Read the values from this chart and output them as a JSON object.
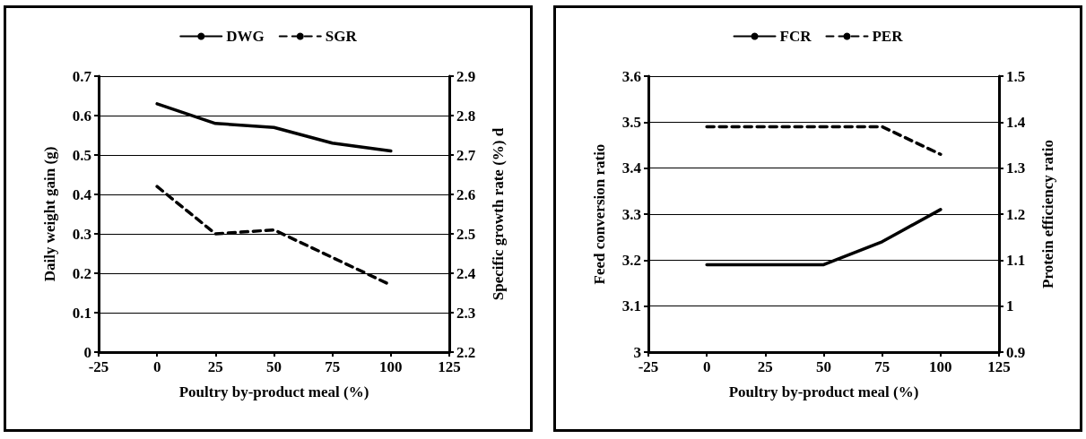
{
  "chart_data": [
    {
      "type": "line",
      "xlabel": "Poultry by-product meal (%)",
      "ylabel": "Daily weight gain (g)",
      "y2label": "Specific growth rate (%) d",
      "x": [
        0,
        25,
        50,
        75,
        100
      ],
      "xlim": [
        -25,
        125
      ],
      "xticks": [
        -25,
        0,
        25,
        50,
        75,
        100,
        125
      ],
      "ylim": [
        0,
        0.7
      ],
      "yticks": [
        0,
        0.1,
        0.2,
        0.3,
        0.4,
        0.5,
        0.6,
        0.7
      ],
      "y2lim": [
        2.2,
        2.9
      ],
      "y2ticks": [
        2.2,
        2.3,
        2.4,
        2.5,
        2.6,
        2.7,
        2.8,
        2.9
      ],
      "grid": "y",
      "legend": "top",
      "marker": "none",
      "series": [
        {
          "name": "DWG",
          "color": "#000000",
          "line_style": "solid",
          "values": [
            0.63,
            0.58,
            0.57,
            0.53,
            0.51
          ]
        },
        {
          "name": "SGR",
          "color": "#000000",
          "line_style": "dashed",
          "axis": "y2",
          "values": [
            2.62,
            2.5,
            2.51,
            2.44,
            2.37
          ]
        }
      ]
    },
    {
      "type": "line",
      "xlabel": "Poultry by-product meal (%)",
      "ylabel": "Feed conversion ratio",
      "y2label": "Protein efficiency ratio",
      "x": [
        0,
        25,
        50,
        75,
        100
      ],
      "xlim": [
        -25,
        125
      ],
      "xticks": [
        -25,
        0,
        25,
        50,
        75,
        100,
        125
      ],
      "ylim": [
        3,
        3.6
      ],
      "yticks": [
        3,
        3.1,
        3.2,
        3.3,
        3.4,
        3.5,
        3.6
      ],
      "y2lim": [
        0.9,
        1.5
      ],
      "y2ticks": [
        0.9,
        1,
        1.1,
        1.2,
        1.3,
        1.4,
        1.5
      ],
      "grid": "y",
      "legend": "top",
      "marker": "none",
      "series": [
        {
          "name": "FCR",
          "color": "#000000",
          "line_style": "solid",
          "values": [
            3.19,
            3.19,
            3.19,
            3.24,
            3.31
          ]
        },
        {
          "name": "PER",
          "color": "#000000",
          "line_style": "dashed",
          "axis": "y2",
          "values": [
            1.39,
            1.39,
            1.39,
            1.39,
            1.33
          ]
        }
      ]
    }
  ]
}
